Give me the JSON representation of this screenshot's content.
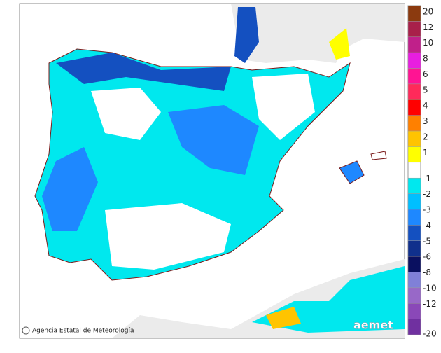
{
  "attribution": "Agencia Estatal de Meteorología",
  "logo": "aemet",
  "legend": {
    "items": [
      {
        "label": "20",
        "color": "#8b3a0f"
      },
      {
        "label": "12",
        "color": "#a8204a"
      },
      {
        "label": "10",
        "color": "#c0208a"
      },
      {
        "label": "8",
        "color": "#e81ee0"
      },
      {
        "label": "6",
        "color": "#ff1493"
      },
      {
        "label": "5",
        "color": "#ff2a5a"
      },
      {
        "label": "4",
        "color": "#ff0000"
      },
      {
        "label": "3",
        "color": "#ff8000"
      },
      {
        "label": "2",
        "color": "#ffc400"
      },
      {
        "label": "1",
        "color": "#ffff00"
      },
      {
        "label": "-1",
        "color": "#00e8ee"
      },
      {
        "label": "-2",
        "color": "#00bfff"
      },
      {
        "label": "-3",
        "color": "#1e88ff"
      },
      {
        "label": "-4",
        "color": "#1450c0"
      },
      {
        "label": "-5",
        "color": "#10308c"
      },
      {
        "label": "-6",
        "color": "#0a1060"
      },
      {
        "label": "-8",
        "color": "#8080d8"
      },
      {
        "label": "-10",
        "color": "#9868c8"
      },
      {
        "label": "-12",
        "color": "#8a48b8"
      },
      {
        "label": "-20",
        "color": "#7030a0"
      }
    ]
  }
}
